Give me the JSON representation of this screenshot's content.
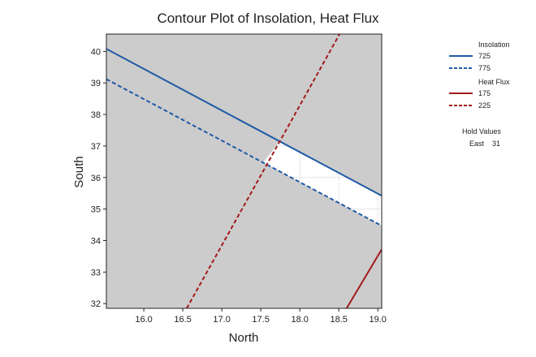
{
  "chart_data": {
    "type": "contour",
    "title": "Contour Plot of Insolation, Heat Flux",
    "xlabel": "North",
    "ylabel": "South",
    "xlim": [
      15.52,
      19.05
    ],
    "ylim": [
      31.85,
      40.55
    ],
    "xticks": [
      "16.0",
      "16.5",
      "17.0",
      "17.5",
      "18.0",
      "18.5",
      "19.0"
    ],
    "yticks": [
      "32",
      "33",
      "34",
      "35",
      "36",
      "37",
      "38",
      "39",
      "40"
    ],
    "legend": {
      "groups": [
        {
          "title": "Insolation",
          "entries": [
            {
              "label": "725",
              "color": "#1f5aa6",
              "style": "solid"
            },
            {
              "label": "775",
              "color": "#1f5aa6",
              "style": "dashed"
            }
          ]
        },
        {
          "title": "Heat Flux",
          "entries": [
            {
              "label": "175",
              "color": "#a31a1a",
              "style": "solid"
            },
            {
              "label": "225",
              "color": "#a31a1a",
              "style": "dashed"
            }
          ]
        }
      ],
      "hold_title": "Hold Values",
      "hold_name": "East",
      "hold_value": "31"
    },
    "series": [
      {
        "name": "Insolation 725",
        "color": "#1f5aa6",
        "style": "solid",
        "points": [
          [
            15.52,
            40.08
          ],
          [
            19.05,
            35.42
          ]
        ]
      },
      {
        "name": "Insolation 775",
        "color": "#1f5aa6",
        "style": "dashed",
        "points": [
          [
            15.52,
            39.12
          ],
          [
            19.05,
            34.47
          ]
        ]
      },
      {
        "name": "Heat Flux 175",
        "color": "#a31a1a",
        "style": "solid",
        "points": [
          [
            18.6,
            31.85
          ],
          [
            19.05,
            33.72
          ]
        ]
      },
      {
        "name": "Heat Flux 225",
        "color": "#a31a1a",
        "style": "dashed",
        "points": [
          [
            16.55,
            31.85
          ],
          [
            18.51,
            40.55
          ]
        ]
      }
    ],
    "feasible_region": [
      [
        17.75,
        37.16
      ],
      [
        19.05,
        35.42
      ],
      [
        19.05,
        34.47
      ],
      [
        17.53,
        36.48
      ]
    ],
    "colors": {
      "infeasible": "#cccccc",
      "feasible": "#ffffff",
      "feasible_grid": "#e6e6e6"
    }
  }
}
